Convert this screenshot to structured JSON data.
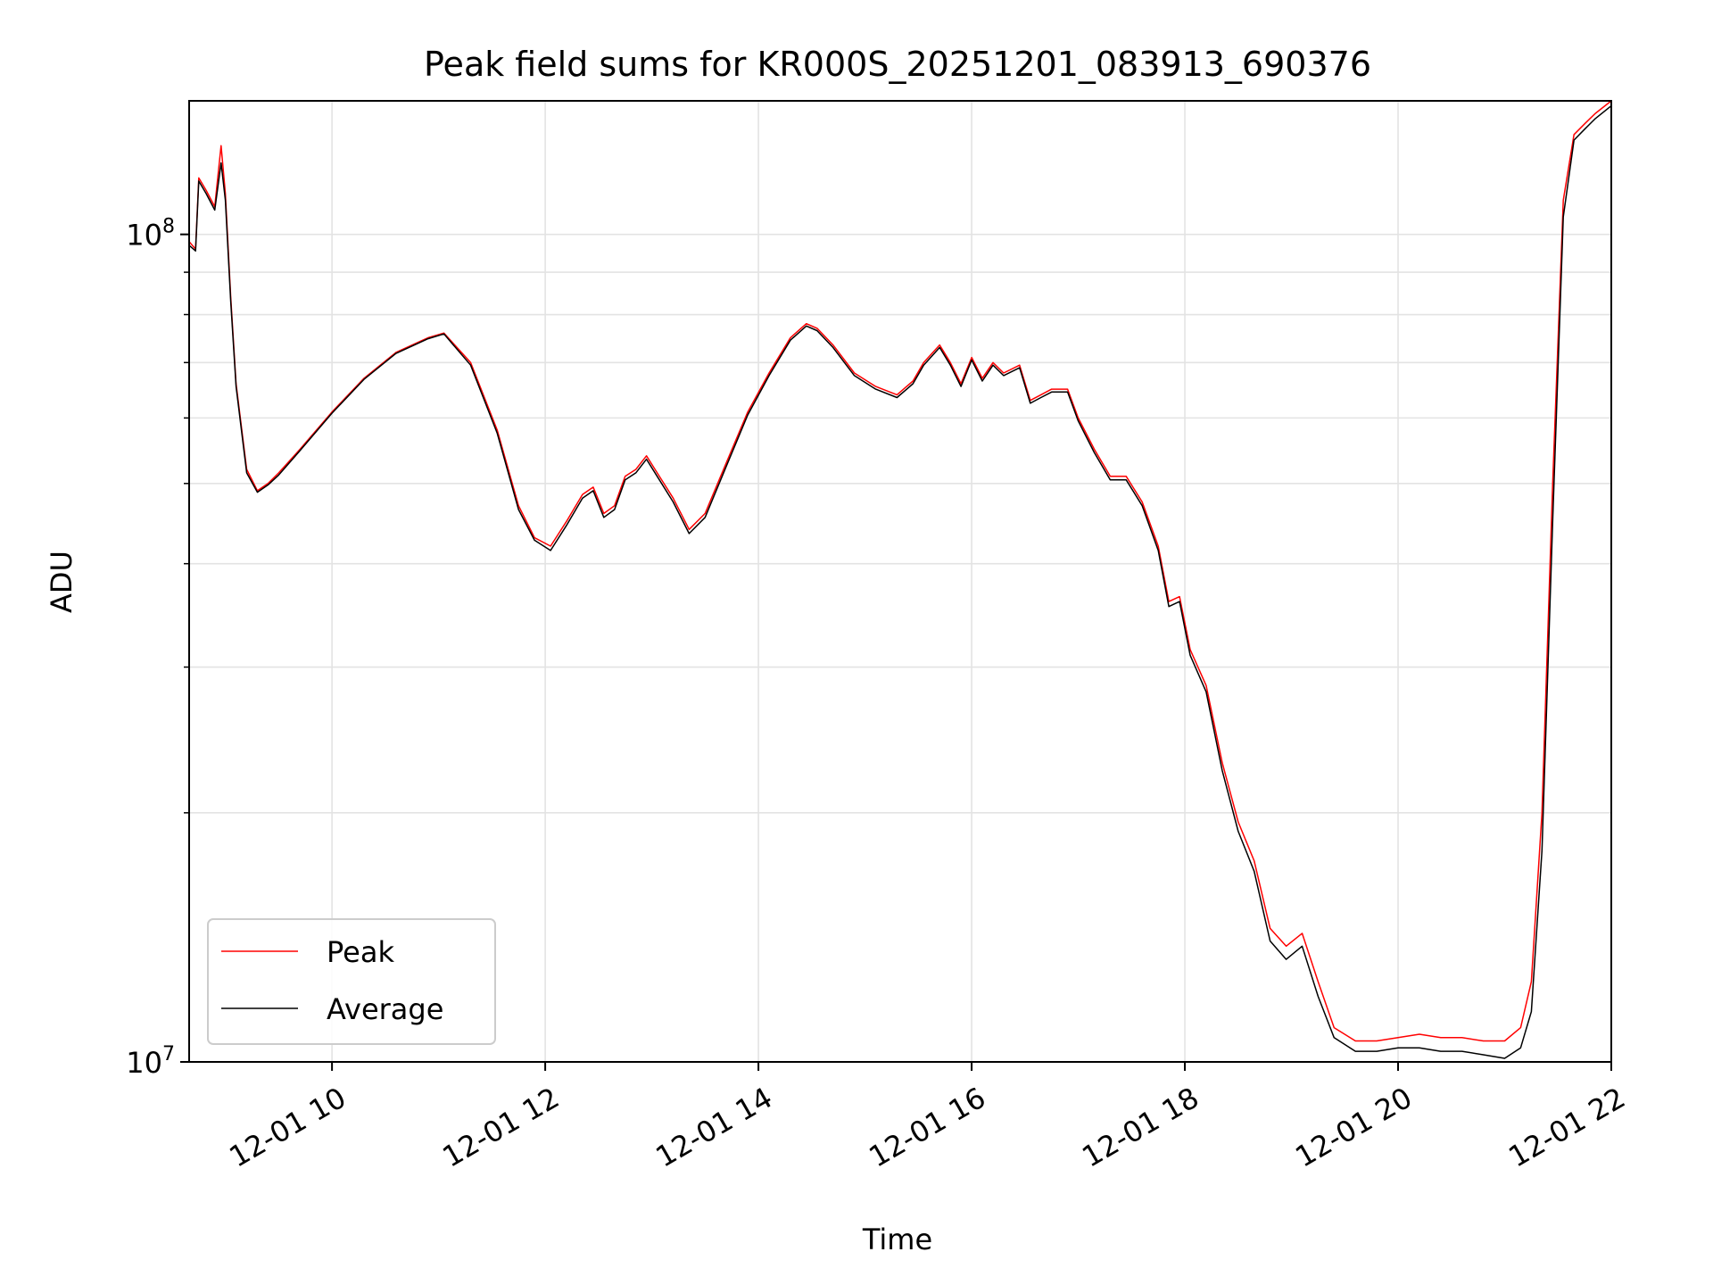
{
  "chart_data": {
    "type": "line",
    "title": "Peak field sums for KR000S_20251201_083913_690376",
    "xlabel": "Time",
    "ylabel": "ADU",
    "x_unit": "hours (Dec 1, 2025)",
    "xlim": [
      8.66,
      22.0
    ],
    "ylim": [
      10000000,
      145000000
    ],
    "y_scale": "log",
    "grid": true,
    "legend_position": "lower-left",
    "x_ticks": [
      {
        "value": 10,
        "label": "12-01 10"
      },
      {
        "value": 12,
        "label": "12-01 12"
      },
      {
        "value": 14,
        "label": "12-01 14"
      },
      {
        "value": 16,
        "label": "12-01 16"
      },
      {
        "value": 18,
        "label": "12-01 18"
      },
      {
        "value": 20,
        "label": "12-01 20"
      },
      {
        "value": 22,
        "label": "12-01 22"
      }
    ],
    "y_ticks": [
      {
        "value": 10000000,
        "base": "10",
        "exp": "7"
      },
      {
        "value": 100000000,
        "base": "10",
        "exp": "8"
      }
    ],
    "y_minor_ticks": [
      20000000,
      30000000,
      40000000,
      50000000,
      60000000,
      70000000,
      80000000,
      90000000
    ],
    "series": [
      {
        "name": "Peak",
        "color": "#ff0000",
        "x": [
          8.66,
          8.72,
          8.75,
          8.82,
          8.9,
          8.96,
          9.0,
          9.05,
          9.1,
          9.2,
          9.3,
          9.4,
          9.5,
          9.7,
          10.0,
          10.3,
          10.6,
          10.9,
          11.05,
          11.3,
          11.55,
          11.75,
          11.9,
          12.05,
          12.2,
          12.35,
          12.45,
          12.55,
          12.65,
          12.75,
          12.85,
          12.95,
          13.05,
          13.2,
          13.35,
          13.5,
          13.7,
          13.9,
          14.1,
          14.3,
          14.45,
          14.55,
          14.7,
          14.9,
          15.1,
          15.3,
          15.45,
          15.55,
          15.7,
          15.8,
          15.9,
          16.0,
          16.1,
          16.2,
          16.3,
          16.45,
          16.55,
          16.65,
          16.75,
          16.9,
          17.0,
          17.15,
          17.3,
          17.45,
          17.6,
          17.75,
          17.85,
          17.95,
          18.05,
          18.2,
          18.35,
          18.5,
          18.65,
          18.8,
          18.95,
          19.1,
          19.25,
          19.4,
          19.6,
          19.8,
          20.0,
          20.2,
          20.4,
          20.6,
          20.8,
          21.0,
          21.15,
          21.25,
          21.35,
          21.45,
          21.55,
          21.65,
          21.75,
          21.85,
          22.0
        ],
        "values": [
          98000000,
          96000000,
          117000000,
          113000000,
          108000000,
          128000000,
          112000000,
          84000000,
          66000000,
          52000000,
          49000000,
          50000000,
          51500000,
          55000000,
          61000000,
          67000000,
          72000000,
          75000000,
          76000000,
          70000000,
          58000000,
          47000000,
          43000000,
          42000000,
          45000000,
          48500000,
          49500000,
          46000000,
          47000000,
          51000000,
          52000000,
          54000000,
          51500000,
          48000000,
          44000000,
          46000000,
          53000000,
          61000000,
          68000000,
          75000000,
          78000000,
          77000000,
          73500000,
          68000000,
          65500000,
          64000000,
          66500000,
          70000000,
          73500000,
          70000000,
          66000000,
          71000000,
          67000000,
          70000000,
          68000000,
          69500000,
          63000000,
          64000000,
          65000000,
          65000000,
          60000000,
          55000000,
          51000000,
          51000000,
          47500000,
          42000000,
          36000000,
          36500000,
          31500000,
          28500000,
          23000000,
          19500000,
          17500000,
          14500000,
          13800000,
          14300000,
          12500000,
          11000000,
          10600000,
          10600000,
          10700000,
          10800000,
          10700000,
          10700000,
          10600000,
          10600000,
          11000000,
          12500000,
          20000000,
          50000000,
          110000000,
          132000000,
          136000000,
          140000000,
          145000000
        ]
      },
      {
        "name": "Average",
        "color": "#000000",
        "x": [
          8.66,
          8.72,
          8.75,
          8.82,
          8.9,
          8.96,
          9.0,
          9.05,
          9.1,
          9.2,
          9.3,
          9.4,
          9.5,
          9.7,
          10.0,
          10.3,
          10.6,
          10.9,
          11.05,
          11.3,
          11.55,
          11.75,
          11.9,
          12.05,
          12.2,
          12.35,
          12.45,
          12.55,
          12.65,
          12.75,
          12.85,
          12.95,
          13.05,
          13.2,
          13.35,
          13.5,
          13.7,
          13.9,
          14.1,
          14.3,
          14.45,
          14.55,
          14.7,
          14.9,
          15.1,
          15.3,
          15.45,
          15.55,
          15.7,
          15.8,
          15.9,
          16.0,
          16.1,
          16.2,
          16.3,
          16.45,
          16.55,
          16.65,
          16.75,
          16.9,
          17.0,
          17.15,
          17.3,
          17.45,
          17.6,
          17.75,
          17.85,
          17.95,
          18.05,
          18.2,
          18.35,
          18.5,
          18.65,
          18.8,
          18.95,
          19.1,
          19.25,
          19.4,
          19.6,
          19.8,
          20.0,
          20.2,
          20.4,
          20.6,
          20.8,
          21.0,
          21.15,
          21.25,
          21.35,
          21.45,
          21.55,
          21.65,
          21.75,
          21.85,
          22.0
        ],
        "values": [
          97000000,
          95500000,
          116000000,
          112000000,
          107000000,
          122000000,
          110000000,
          83000000,
          65500000,
          51500000,
          48800000,
          49800000,
          51200000,
          54800000,
          60800000,
          66800000,
          71800000,
          74800000,
          75800000,
          69500000,
          57500000,
          46500000,
          42700000,
          41500000,
          44500000,
          48000000,
          49000000,
          45500000,
          46500000,
          50500000,
          51500000,
          53500000,
          51000000,
          47500000,
          43500000,
          45500000,
          52500000,
          60500000,
          67500000,
          74500000,
          77500000,
          76500000,
          73000000,
          67500000,
          65000000,
          63500000,
          66000000,
          69500000,
          73000000,
          69500000,
          65500000,
          70500000,
          66500000,
          69500000,
          67500000,
          69000000,
          62500000,
          63500000,
          64500000,
          64500000,
          59500000,
          54500000,
          50500000,
          50500000,
          47000000,
          41500000,
          35500000,
          36000000,
          31000000,
          28000000,
          22500000,
          19000000,
          17000000,
          14000000,
          13300000,
          13800000,
          12000000,
          10700000,
          10300000,
          10300000,
          10400000,
          10400000,
          10300000,
          10300000,
          10200000,
          10100000,
          10400000,
          11500000,
          18000000,
          45000000,
          105000000,
          130000000,
          134000000,
          138000000,
          143000000
        ]
      }
    ]
  }
}
